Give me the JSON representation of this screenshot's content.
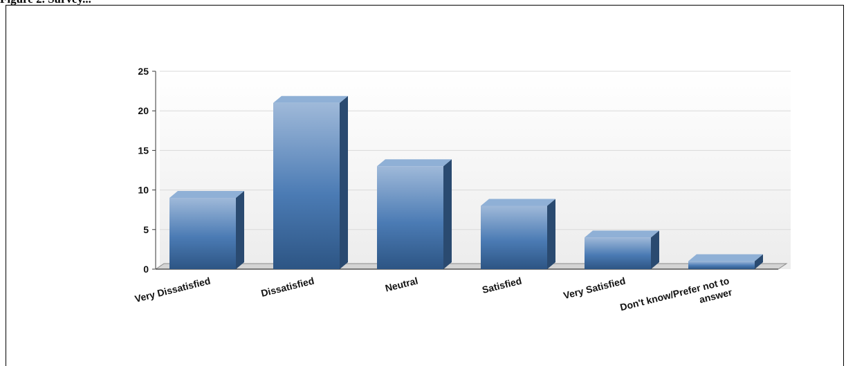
{
  "caption": "Figure 2. Survey...",
  "chart_data": {
    "type": "bar",
    "title": "",
    "xlabel": "",
    "ylabel": "",
    "categories": [
      "Very Dissatisfied",
      "Dissatisfied",
      "Neutral",
      "Satisfied",
      "Very Satisfied",
      "Don't know/Prefer not to answer"
    ],
    "category_lines": [
      [
        "Very Dissatisfied"
      ],
      [
        "Dissatisfied"
      ],
      [
        "Neutral"
      ],
      [
        "Satisfied"
      ],
      [
        "Very Satisfied"
      ],
      [
        "Don't know/Prefer not to",
        "answer"
      ]
    ],
    "values": [
      9,
      21,
      13,
      8,
      4,
      1
    ],
    "ylim": [
      0,
      25
    ],
    "yticks": [
      0,
      5,
      10,
      15,
      20,
      25
    ],
    "grid": true,
    "legend": "none",
    "style": "3d",
    "colors": {
      "bar_top": "#9fb9d9",
      "bar_mid": "#4b7bb4",
      "bar_bottom": "#2d5584",
      "bar_side": "#2a4a70",
      "bar_cap": "#8fb0d6",
      "grid": "#d9d9d9",
      "plot_bg_top": "#ffffff",
      "plot_bg_bottom": "#ececec",
      "axis": "#333333"
    }
  }
}
